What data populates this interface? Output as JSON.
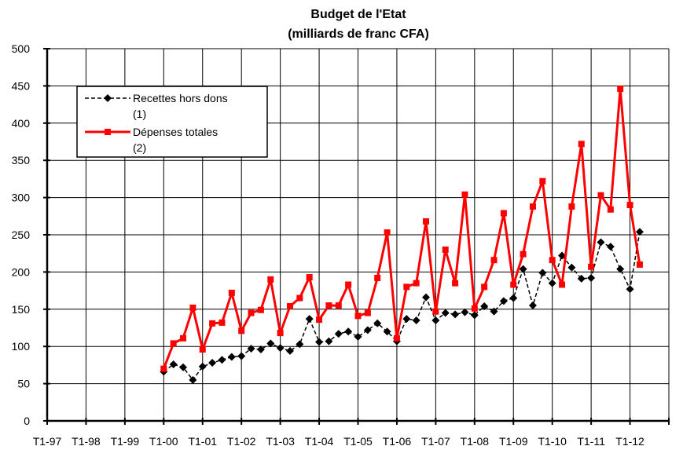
{
  "chart_data": {
    "type": "line",
    "title_line1": "Budget de l'Etat",
    "title_line2": "(milliards de franc CFA)",
    "xlabel": "",
    "ylabel": "",
    "ylim": [
      0,
      500
    ],
    "yticks": [
      0,
      50,
      100,
      150,
      200,
      250,
      300,
      350,
      400,
      450,
      500
    ],
    "xlim": [
      0,
      64
    ],
    "xtick_labels": [
      "T1-97",
      "T1-98",
      "T1-99",
      "T1-00",
      "T1-01",
      "T1-02",
      "T1-03",
      "T1-04",
      "T1-05",
      "T1-06",
      "T1-07",
      "T1-08",
      "T1-09",
      "T1-10",
      "T1-11",
      "T1-12"
    ],
    "grid": true,
    "legend_position": "top-left",
    "x_start_index": 12,
    "series": [
      {
        "name_line1": "Recettes hors dons",
        "name_line2": "(1)",
        "color": "#000000",
        "style": "dashed",
        "marker": "diamond",
        "values": [
          66,
          76,
          72,
          55,
          73,
          78,
          82,
          86,
          87,
          97,
          96,
          104,
          98,
          94,
          103,
          137,
          106,
          107,
          117,
          120,
          113,
          122,
          131,
          120,
          107,
          137,
          135,
          166,
          135,
          145,
          143,
          146,
          142,
          154,
          147,
          161,
          165,
          204,
          155,
          199,
          185,
          222,
          206,
          191,
          192,
          240,
          234,
          204,
          177,
          254
        ]
      },
      {
        "name_line1": "Dépenses totales",
        "name_line2": "(2)",
        "color": "#ff0000",
        "style": "solid",
        "marker": "square",
        "values": [
          70,
          104,
          111,
          152,
          96,
          131,
          132,
          172,
          121,
          145,
          149,
          190,
          118,
          154,
          165,
          193,
          136,
          155,
          155,
          183,
          141,
          145,
          192,
          253,
          111,
          180,
          185,
          268,
          147,
          230,
          185,
          304,
          151,
          180,
          216,
          279,
          183,
          224,
          288,
          322,
          216,
          183,
          288,
          372,
          207,
          303,
          284,
          446,
          290,
          210
        ]
      }
    ]
  }
}
